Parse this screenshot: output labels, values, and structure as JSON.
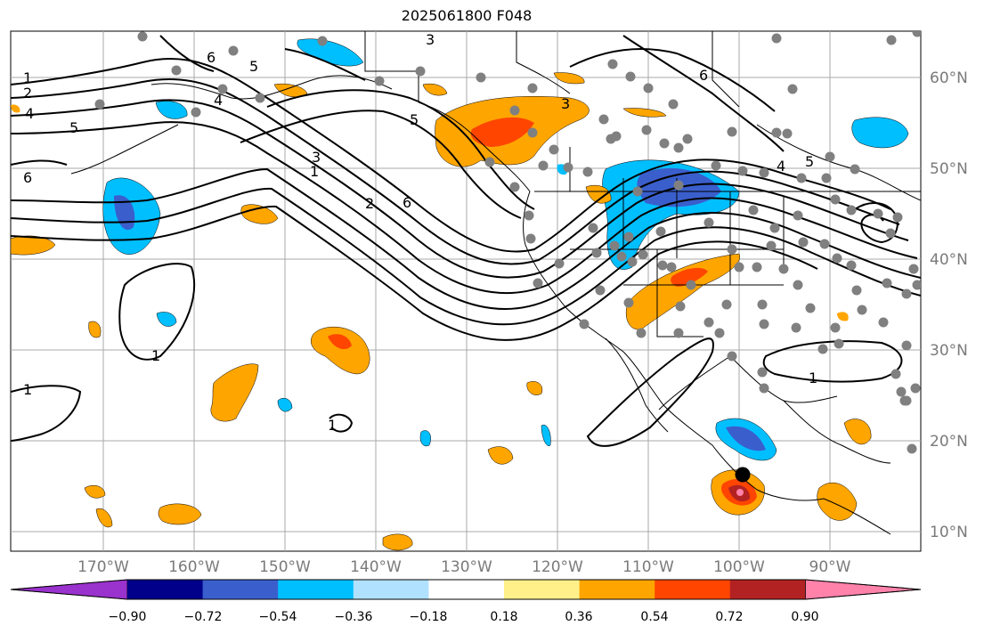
{
  "title": "2025061800 F048",
  "map": {
    "lon_labels": [
      "170°W",
      "160°W",
      "150°W",
      "140°W",
      "130°W",
      "120°W",
      "110°W",
      "100°W",
      "90°W"
    ],
    "lat_labels": [
      "60°N",
      "50°N",
      "40°N",
      "30°N",
      "20°N",
      "10°N"
    ],
    "contour_labels": [
      "1",
      "2",
      "3",
      "4",
      "5",
      "6"
    ],
    "marker_point": {
      "lon": -100,
      "lat": 16.5
    }
  },
  "colorbar": {
    "colors": [
      "#9a32cd",
      "#00008b",
      "#3a5fcd",
      "#00bfff",
      "#b0e2ff",
      "#ffffff",
      "#fff08a",
      "#ffa500",
      "#ff4500",
      "#b22222",
      "#ff82ab"
    ],
    "tick_labels": [
      "−0.90",
      "−0.72",
      "−0.54",
      "−0.36",
      "−0.18",
      "0.18",
      "0.36",
      "0.54",
      "0.72",
      "0.90"
    ]
  }
}
